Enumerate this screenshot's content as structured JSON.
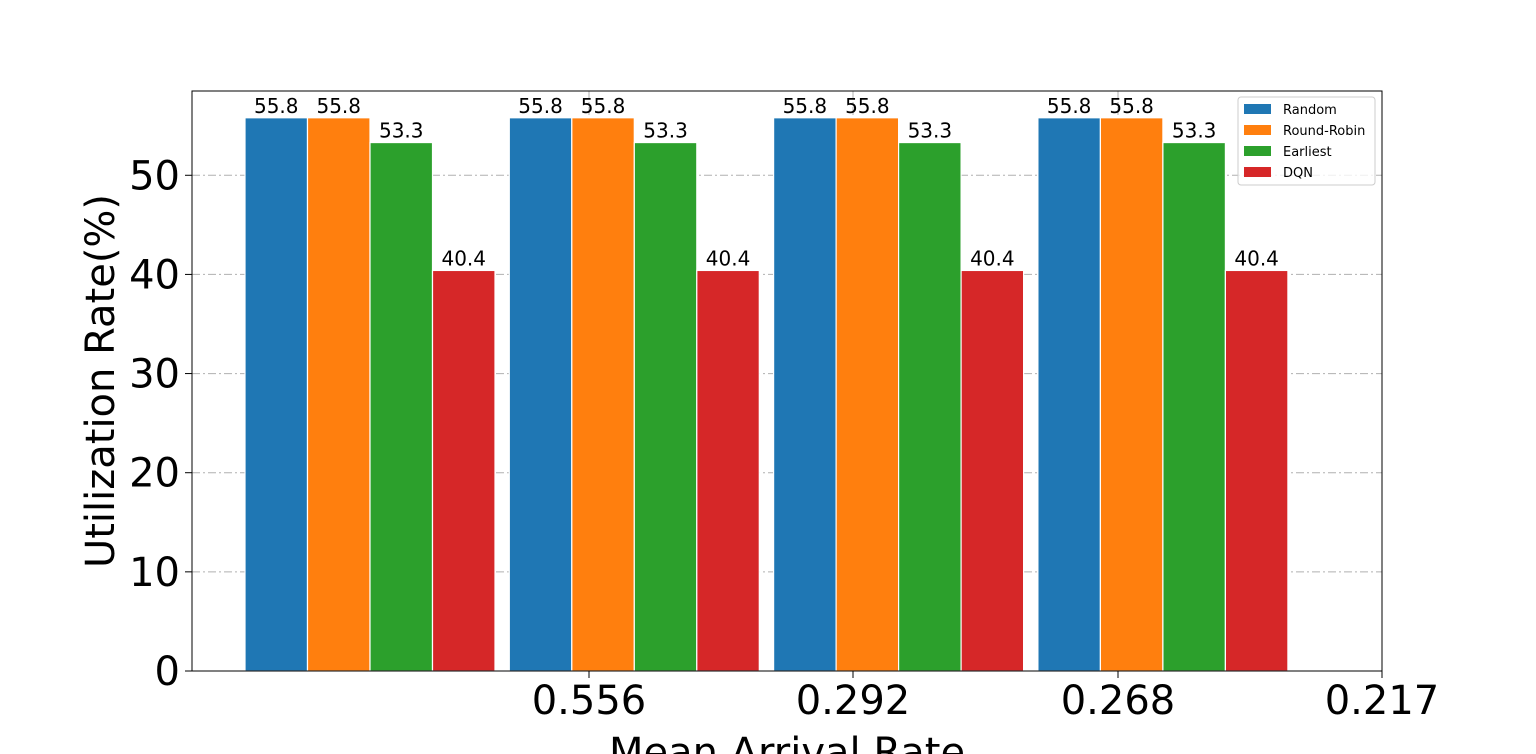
{
  "chart_data": {
    "type": "bar",
    "xlabel": "Mean Arrival Rate",
    "ylabel": "Utilization Rate(%)",
    "ylim": [
      0,
      58.5
    ],
    "yticks": [
      0,
      10,
      20,
      30,
      40,
      50
    ],
    "xtick_labels": [
      "0.556",
      "0.292",
      "0.268",
      "0.217"
    ],
    "groups": 4,
    "series": [
      {
        "name": "Random",
        "color": "#1f77b4",
        "values": [
          55.8,
          55.8,
          55.8,
          55.8
        ]
      },
      {
        "name": "Round-Robin",
        "color": "#ff7f0e",
        "values": [
          55.8,
          55.8,
          55.8,
          55.8
        ]
      },
      {
        "name": "Earliest",
        "color": "#2ca02c",
        "values": [
          53.3,
          53.3,
          53.3,
          53.3
        ]
      },
      {
        "name": "DQN",
        "color": "#d62728",
        "values": [
          40.4,
          40.4,
          40.4,
          40.4
        ]
      }
    ],
    "grid": true,
    "legend": "top-right"
  }
}
